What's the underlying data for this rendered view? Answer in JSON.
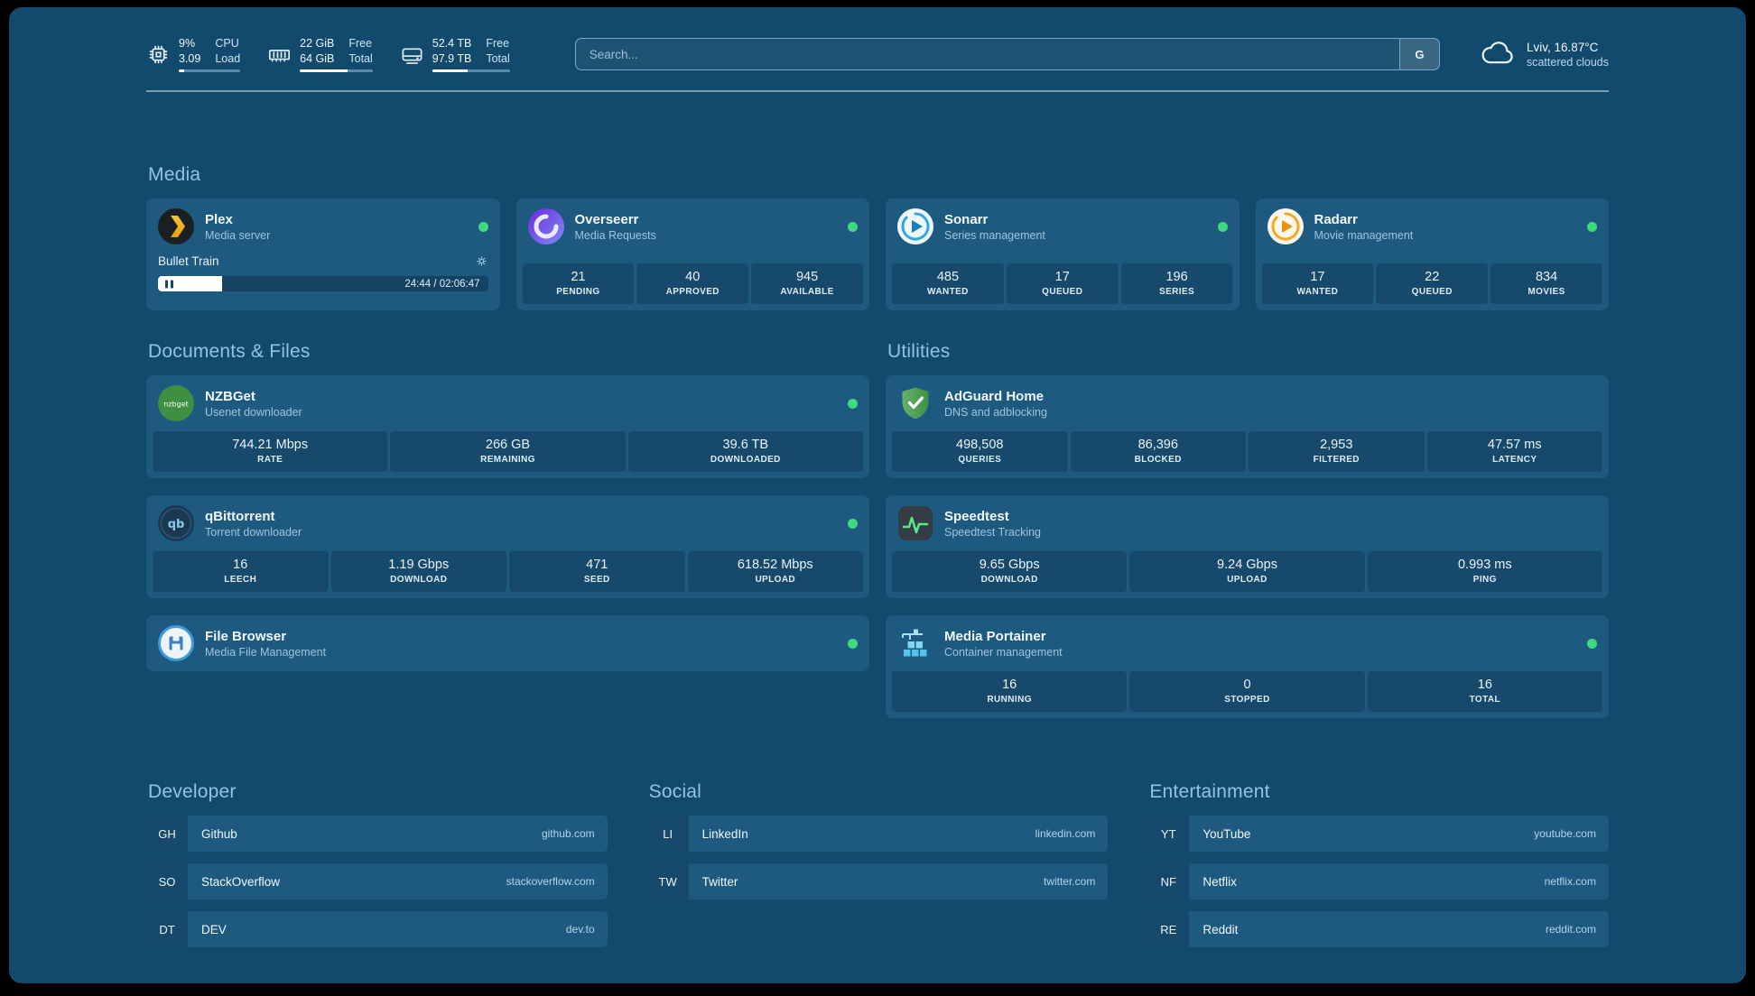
{
  "topbar": {
    "cpu": {
      "value1": "9%",
      "label1": "CPU",
      "value2": "3.09",
      "label2": "Load",
      "usage_pct": "9"
    },
    "memory": {
      "value1": "22 GiB",
      "label1": "Free",
      "value2": "64 GiB",
      "label2": "Total",
      "usage_pct": "66"
    },
    "disk": {
      "value1": "52.4 TB",
      "label1": "Free",
      "value2": "97.9 TB",
      "label2": "Total",
      "usage_pct": "46"
    },
    "search": {
      "placeholder": "Search...",
      "button_label": "G"
    },
    "weather": {
      "location": "Lviv, 16.87°C",
      "condition": "scattered clouds"
    }
  },
  "sections": {
    "media": "Media",
    "documents": "Documents & Files",
    "utilities": "Utilities"
  },
  "services": {
    "plex": {
      "name": "Plex",
      "subtitle": "Media server",
      "now_playing": "Bullet Train",
      "progress_time": "24:44 / 02:06:47",
      "progress_pct": "19.5"
    },
    "overseerr": {
      "name": "Overseerr",
      "subtitle": "Media Requests",
      "stats": [
        {
          "value": "21",
          "label": "PENDING"
        },
        {
          "value": "40",
          "label": "APPROVED"
        },
        {
          "value": "945",
          "label": "AVAILABLE"
        }
      ]
    },
    "sonarr": {
      "name": "Sonarr",
      "subtitle": "Series management",
      "stats": [
        {
          "value": "485",
          "label": "WANTED"
        },
        {
          "value": "17",
          "label": "QUEUED"
        },
        {
          "value": "196",
          "label": "SERIES"
        }
      ]
    },
    "radarr": {
      "name": "Radarr",
      "subtitle": "Movie management",
      "stats": [
        {
          "value": "17",
          "label": "WANTED"
        },
        {
          "value": "22",
          "label": "QUEUED"
        },
        {
          "value": "834",
          "label": "MOVIES"
        }
      ]
    },
    "nzbget": {
      "name": "NZBGet",
      "subtitle": "Usenet downloader",
      "stats": [
        {
          "value": "744.21 Mbps",
          "label": "RATE"
        },
        {
          "value": "266 GB",
          "label": "REMAINING"
        },
        {
          "value": "39.6 TB",
          "label": "DOWNLOADED"
        }
      ]
    },
    "qbittorrent": {
      "name": "qBittorrent",
      "subtitle": "Torrent downloader",
      "stats": [
        {
          "value": "16",
          "label": "LEECH"
        },
        {
          "value": "1.19 Gbps",
          "label": "DOWNLOAD"
        },
        {
          "value": "471",
          "label": "SEED"
        },
        {
          "value": "618.52 Mbps",
          "label": "UPLOAD"
        }
      ]
    },
    "filebrowser": {
      "name": "File Browser",
      "subtitle": "Media File Management"
    },
    "adguard": {
      "name": "AdGuard Home",
      "subtitle": "DNS and adblocking",
      "stats": [
        {
          "value": "498,508",
          "label": "QUERIES"
        },
        {
          "value": "86,396",
          "label": "BLOCKED"
        },
        {
          "value": "2,953",
          "label": "FILTERED"
        },
        {
          "value": "47.57 ms",
          "label": "LATENCY"
        }
      ]
    },
    "speedtest": {
      "name": "Speedtest",
      "subtitle": "Speedtest Tracking",
      "stats": [
        {
          "value": "9.65 Gbps",
          "label": "DOWNLOAD"
        },
        {
          "value": "9.24 Gbps",
          "label": "UPLOAD"
        },
        {
          "value": "0.993 ms",
          "label": "PING"
        }
      ]
    },
    "portainer": {
      "name": "Media Portainer",
      "subtitle": "Container management",
      "stats": [
        {
          "value": "16",
          "label": "RUNNING"
        },
        {
          "value": "0",
          "label": "STOPPED"
        },
        {
          "value": "16",
          "label": "TOTAL"
        }
      ]
    }
  },
  "bookmarks": {
    "developer": {
      "title": "Developer",
      "items": [
        {
          "abbr": "GH",
          "name": "Github",
          "domain": "github.com"
        },
        {
          "abbr": "SO",
          "name": "StackOverflow",
          "domain": "stackoverflow.com"
        },
        {
          "abbr": "DT",
          "name": "DEV",
          "domain": "dev.to"
        }
      ]
    },
    "social": {
      "title": "Social",
      "items": [
        {
          "abbr": "LI",
          "name": "LinkedIn",
          "domain": "linkedin.com"
        },
        {
          "abbr": "TW",
          "name": "Twitter",
          "domain": "twitter.com"
        }
      ]
    },
    "entertainment": {
      "title": "Entertainment",
      "items": [
        {
          "abbr": "YT",
          "name": "YouTube",
          "domain": "youtube.com"
        },
        {
          "abbr": "NF",
          "name": "Netflix",
          "domain": "netflix.com"
        },
        {
          "abbr": "RE",
          "name": "Reddit",
          "domain": "reddit.com"
        }
      ]
    }
  }
}
